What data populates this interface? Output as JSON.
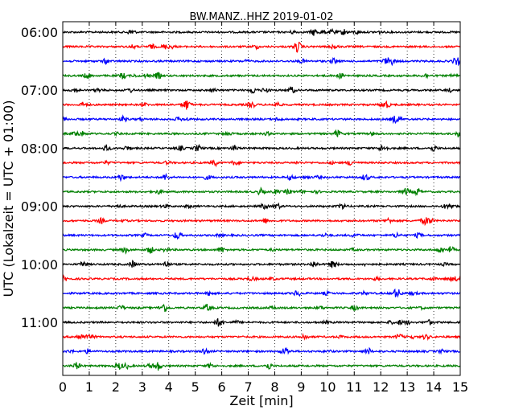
{
  "chart_data": {
    "type": "line",
    "title": "BW.MANZ..HHZ 2019-01-02",
    "xlabel": "Zeit  [min]",
    "ylabel": "UTC (Lokalzeit = UTC + 01:00)",
    "xlim": [
      0,
      15
    ],
    "x_ticks": [
      "0",
      "1",
      "2",
      "3",
      "4",
      "5",
      "6",
      "7",
      "8",
      "9",
      "10",
      "11",
      "12",
      "13",
      "14",
      "15"
    ],
    "y_ticks": [
      "06:00",
      "07:00",
      "08:00",
      "09:00",
      "10:00",
      "11:00"
    ],
    "trace_interval_min": 15,
    "trace_start": "06:00",
    "trace_count": 24,
    "colors": [
      "#000000",
      "#ff0000",
      "#0000ff",
      "#008000"
    ],
    "grid": "vertical dotted"
  }
}
